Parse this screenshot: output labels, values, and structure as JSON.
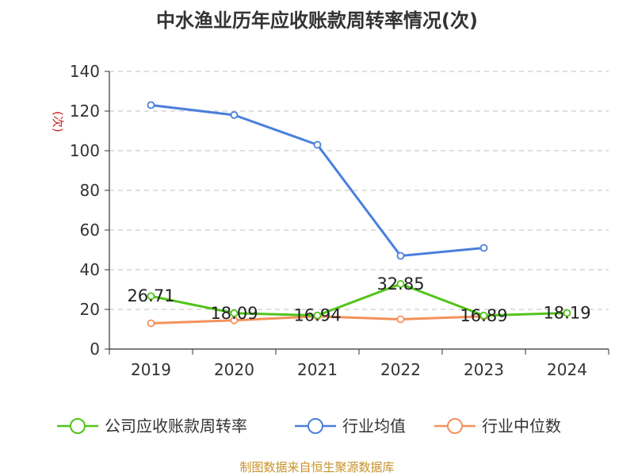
{
  "chart_data": {
    "type": "line",
    "title": "中水渔业历年应收账款周转率情况(次)",
    "ylabel": "(次)",
    "xlabel": "",
    "ylim": [
      0,
      140
    ],
    "yticks": [
      0,
      20,
      40,
      60,
      80,
      100,
      120,
      140
    ],
    "categories": [
      "2019",
      "2020",
      "2021",
      "2022",
      "2023",
      "2024"
    ],
    "grid": true,
    "legend_position": "bottom",
    "series": [
      {
        "name": "公司应收账款周转率",
        "color": "#52c41a",
        "values": [
          26.71,
          18.09,
          16.94,
          32.85,
          16.89,
          18.19
        ],
        "labels": [
          "26.71",
          "18.09",
          "16.94",
          "32.85",
          "16.89",
          "18.19"
        ]
      },
      {
        "name": "行业均值",
        "color": "#4a7fdc",
        "values": [
          123,
          118,
          103,
          47,
          51,
          null
        ]
      },
      {
        "name": "行业中位数",
        "color": "#f4915a",
        "values": [
          13,
          14.5,
          16.5,
          15,
          16.5,
          null
        ]
      }
    ]
  },
  "source": "制图数据来自恒生聚源数据库"
}
